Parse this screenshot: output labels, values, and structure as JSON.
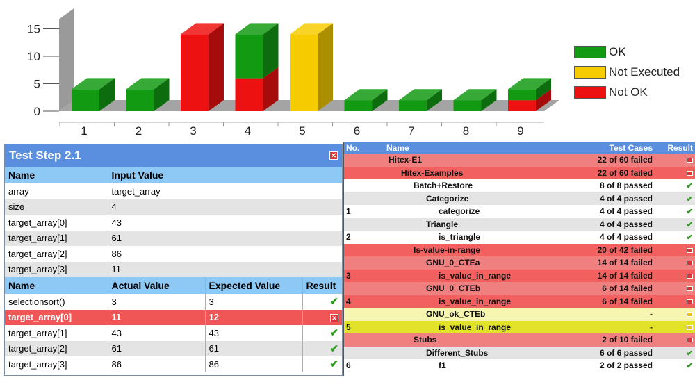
{
  "chart_data": {
    "type": "bar",
    "categories": [
      "1",
      "2",
      "3",
      "4",
      "5",
      "6",
      "7",
      "8",
      "9"
    ],
    "y_ticks": [
      "0",
      "5",
      "10",
      "15"
    ],
    "ylim": [
      0,
      15
    ],
    "series": [
      {
        "name": "OK",
        "values": [
          4,
          4,
          0,
          8,
          0,
          2,
          2,
          2,
          2
        ],
        "color": "#129a12"
      },
      {
        "name": "Not Executed",
        "values": [
          0,
          0,
          0,
          0,
          14,
          0,
          0,
          0,
          0
        ],
        "color": "#f6cc00"
      },
      {
        "name": "Not OK",
        "values": [
          0,
          0,
          14,
          6,
          0,
          0,
          0,
          0,
          2
        ],
        "color": "#ee1111"
      }
    ]
  },
  "legend": [
    "OK",
    "Not Executed",
    "Not OK"
  ],
  "colors": {
    "ok": "#129a12",
    "not_executed": "#f6cc00",
    "not_ok": "#ee1111",
    "header_blue": "#5a8fe0",
    "fail_row": "#f05656"
  },
  "test_step": {
    "title": "Test Step 2.1",
    "input_headers": [
      "Name",
      "Input Value"
    ],
    "inputs": [
      {
        "name": "array",
        "value": "target_array"
      },
      {
        "name": "size",
        "value": "4"
      },
      {
        "name": "target_array[0]",
        "value": "43"
      },
      {
        "name": "target_array[1]",
        "value": "61"
      },
      {
        "name": "target_array[2]",
        "value": "86"
      },
      {
        "name": "target_array[3]",
        "value": "11"
      }
    ],
    "result_headers": [
      "Name",
      "Actual Value",
      "Expected Value",
      "Result"
    ],
    "results": [
      {
        "name": "selectionsort()",
        "actual": "3",
        "expected": "3",
        "status": "pass",
        "icon": "check"
      },
      {
        "name": "target_array[0]",
        "actual": "11",
        "expected": "12",
        "status": "fail",
        "icon": "x"
      },
      {
        "name": "target_array[1]",
        "actual": "43",
        "expected": "43",
        "status": "pass",
        "icon": "check"
      },
      {
        "name": "target_array[2]",
        "actual": "61",
        "expected": "61",
        "status": "pass",
        "icon": "check"
      },
      {
        "name": "target_array[3]",
        "actual": "86",
        "expected": "86",
        "status": "pass",
        "icon": "check"
      }
    ]
  },
  "overview": {
    "headers": [
      "No.",
      "Name",
      "Test Cases",
      "Result"
    ],
    "rows": [
      {
        "no": "",
        "name": "Hitex-E1",
        "indent": 0,
        "cases": "22 of 60 failed",
        "style": "red",
        "icon": "x"
      },
      {
        "no": "",
        "name": "Hitex-Examples",
        "indent": 1,
        "cases": "22 of 60 failed",
        "style": "red2",
        "icon": "x"
      },
      {
        "no": "",
        "name": "Batch+Restore",
        "indent": 2,
        "cases": "8 of 8 passed",
        "style": "light",
        "icon": "check"
      },
      {
        "no": "",
        "name": "Categorize",
        "indent": 3,
        "cases": "4 of 4 passed",
        "style": "gray",
        "icon": "check"
      },
      {
        "no": "1",
        "name": "categorize",
        "indent": 4,
        "cases": "4 of 4 passed",
        "style": "light",
        "icon": "check"
      },
      {
        "no": "",
        "name": "Triangle",
        "indent": 3,
        "cases": "4 of 4 passed",
        "style": "gray",
        "icon": "check"
      },
      {
        "no": "2",
        "name": "is_triangle",
        "indent": 4,
        "cases": "4 of 4 passed",
        "style": "light",
        "icon": "check"
      },
      {
        "no": "",
        "name": "Is-value-in-range",
        "indent": 2,
        "cases": "20 of 42 failed",
        "style": "red2",
        "icon": "x"
      },
      {
        "no": "",
        "name": "GNU_0_CTEa",
        "indent": 3,
        "cases": "14 of 14 failed",
        "style": "red",
        "icon": "x"
      },
      {
        "no": "3",
        "name": "is_value_in_range",
        "indent": 4,
        "cases": "14 of 14 failed",
        "style": "red2",
        "icon": "x"
      },
      {
        "no": "",
        "name": "GNU_0_CTEb",
        "indent": 3,
        "cases": "6 of 14 failed",
        "style": "red",
        "icon": "x"
      },
      {
        "no": "4",
        "name": "is_value_in_range",
        "indent": 4,
        "cases": "6 of 14 failed",
        "style": "red2",
        "icon": "x"
      },
      {
        "no": "",
        "name": "GNU_ok_CTEb",
        "indent": 3,
        "cases": "-",
        "style": "yl",
        "icon": "y"
      },
      {
        "no": "5",
        "name": "is_value_in_range",
        "indent": 4,
        "cases": "-",
        "style": "yl2",
        "icon": "y"
      },
      {
        "no": "",
        "name": "Stubs",
        "indent": 2,
        "cases": "2 of 10 failed",
        "style": "red",
        "icon": "x"
      },
      {
        "no": "",
        "name": "Different_Stubs",
        "indent": 3,
        "cases": "6 of 6 passed",
        "style": "gray",
        "icon": "check"
      },
      {
        "no": "6",
        "name": "f1",
        "indent": 4,
        "cases": "2 of 2 passed",
        "style": "light",
        "icon": "check"
      }
    ]
  }
}
